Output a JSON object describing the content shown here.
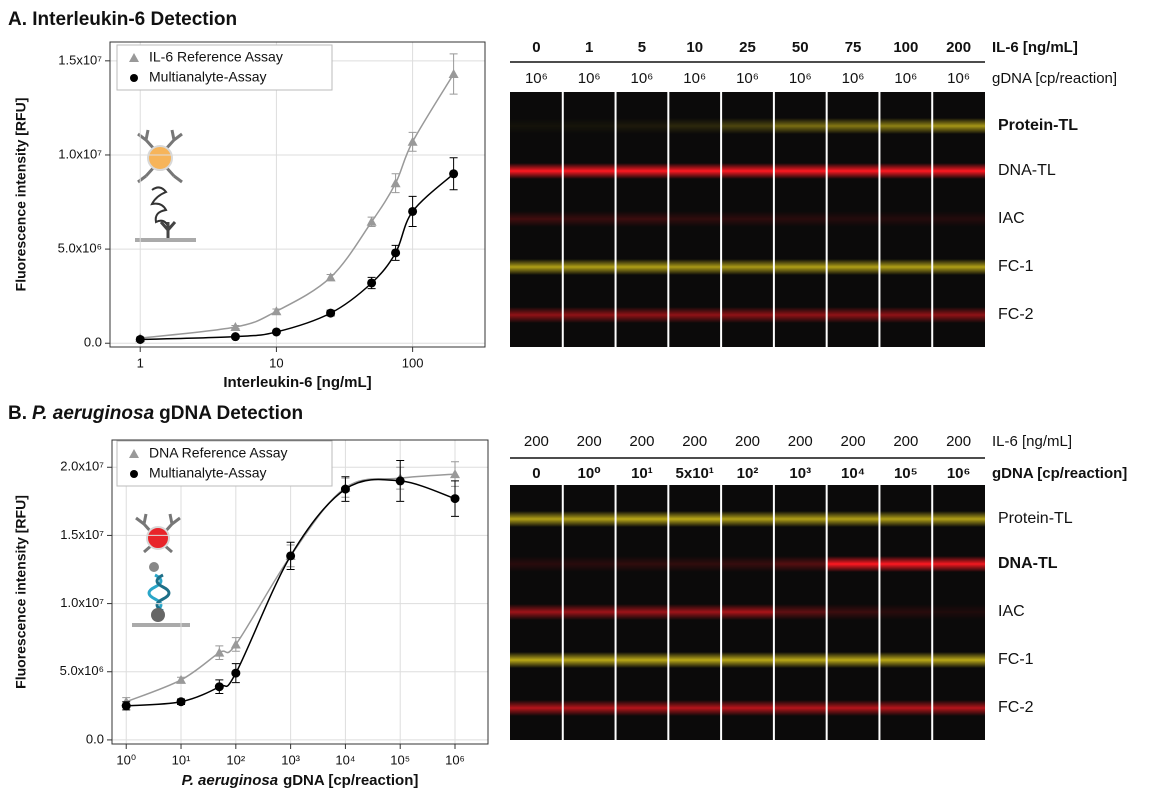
{
  "chart_data": [
    {
      "type": "scatter",
      "title": "A. Interleukin-6 Detection",
      "xlabel": "Interleukin-6 [ng/mL]",
      "ylabel": "Fluorescence intensity [RFU]",
      "xlog": true,
      "grid": true,
      "legend": "upper left",
      "xlim": [
        0.6,
        340
      ],
      "ylim": [
        -200000,
        16000000
      ],
      "xticks": [
        1,
        10,
        100
      ],
      "yticks": [
        {
          "value": 0,
          "label": "0.0"
        },
        {
          "value": 5000000,
          "label": "5.0x10⁶"
        },
        {
          "value": 10000000,
          "label": "1.0x10⁷"
        },
        {
          "value": 15000000,
          "label": "1.5x10⁷"
        }
      ],
      "x": [
        1,
        5,
        10,
        25,
        50,
        75,
        100,
        200
      ],
      "series": [
        {
          "name": "IL-6 Reference Assay",
          "color": "#999999",
          "marker": "triangle",
          "values": [
            270000,
            860000,
            1700000,
            3500000,
            6450000,
            8500000,
            10700000,
            14300000
          ],
          "errors": [
            60000,
            80000,
            120000,
            150000,
            250000,
            500000,
            500000,
            1070000
          ]
        },
        {
          "name": "Multianalyte-Assay",
          "color": "#000000",
          "marker": "circle",
          "values": [
            200000,
            350000,
            600000,
            1600000,
            3200000,
            4800000,
            7000000,
            9000000
          ],
          "errors": [
            50000,
            60000,
            80000,
            150000,
            300000,
            400000,
            800000,
            850000
          ]
        }
      ]
    },
    {
      "type": "scatter",
      "title_prefix": "B.",
      "title_italic": "P. aeruginosa",
      "title": "gDNA Detection",
      "xlabel_italic": "P. aeruginosa",
      "xlabel": "gDNA [cp/reaction]",
      "ylabel": "Fluorescence intensity [RFU]",
      "xlog": true,
      "grid": true,
      "legend": "upper left",
      "xlim": [
        0.55,
        4000000
      ],
      "ylim": [
        -300000,
        22000000
      ],
      "xticks": [
        {
          "value": 1,
          "label": "10⁰"
        },
        {
          "value": 10,
          "label": "10¹"
        },
        {
          "value": 100,
          "label": "10²"
        },
        {
          "value": 1000,
          "label": "10³"
        },
        {
          "value": 10000,
          "label": "10⁴"
        },
        {
          "value": 100000,
          "label": "10⁵"
        },
        {
          "value": 1000000,
          "label": "10⁶"
        }
      ],
      "yticks": [
        {
          "value": 0,
          "label": "0.0"
        },
        {
          "value": 5000000,
          "label": "5.0x10⁶"
        },
        {
          "value": 10000000,
          "label": "1.0x10⁷"
        },
        {
          "value": 15000000,
          "label": "1.5x10⁷"
        },
        {
          "value": 20000000,
          "label": "2.0x10⁷"
        }
      ],
      "x": [
        1,
        10,
        50,
        100,
        1000,
        10000,
        100000,
        1000000
      ],
      "series": [
        {
          "name": "DNA Reference Assay",
          "color": "#999999",
          "marker": "triangle",
          "values": [
            2800000,
            4400000,
            6400000,
            7000000,
            13500000,
            18500000,
            19200000,
            19500000
          ],
          "errors": [
            300000,
            200000,
            500000,
            500000,
            800000,
            700000,
            800000,
            900000
          ]
        },
        {
          "name": "Multianalyte-Assay",
          "color": "#000000",
          "marker": "circle",
          "values": [
            2500000,
            2800000,
            3900000,
            4900000,
            13500000,
            18400000,
            19000000,
            17700000
          ],
          "errors": [
            300000,
            200000,
            500000,
            700000,
            1000000,
            900000,
            1500000,
            1300000
          ]
        }
      ]
    }
  ],
  "blots": [
    {
      "top_labels": [
        "0",
        "1",
        "5",
        "10",
        "25",
        "50",
        "75",
        "100",
        "200"
      ],
      "top_unit": "IL-6 [ng/mL]",
      "bottom_labels": [
        "10⁶",
        "10⁶",
        "10⁶",
        "10⁶",
        "10⁶",
        "10⁶",
        "10⁶",
        "10⁶",
        "10⁶"
      ],
      "bottom_unit": "gDNA [cp/reaction]",
      "bold_header": 0,
      "rows": [
        "Protein-TL",
        "DNA-TL",
        "IAC",
        "FC-1",
        "FC-2"
      ],
      "bold_row": 0
    },
    {
      "top_labels": [
        "200",
        "200",
        "200",
        "200",
        "200",
        "200",
        "200",
        "200",
        "200"
      ],
      "top_unit": "IL-6 [ng/mL]",
      "bottom_labels": [
        "0",
        "10⁰",
        "10¹",
        "5x10¹",
        "10²",
        "10³",
        "10⁴",
        "10⁵",
        "10⁶"
      ],
      "bottom_unit": "gDNA [cp/reaction]",
      "bold_header": 1,
      "rows": [
        "Protein-TL",
        "DNA-TL",
        "IAC",
        "FC-1",
        "FC-2"
      ],
      "bold_row": 1
    }
  ]
}
